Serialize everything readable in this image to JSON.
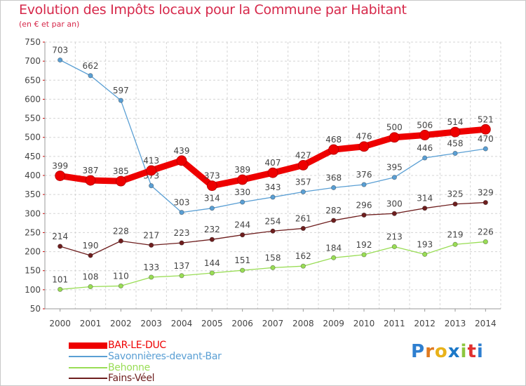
{
  "header": {
    "title": "Evolution des Impôts locaux pour la Commune par Habitant",
    "subtitle": "(en € et par an)"
  },
  "brand": {
    "letters": [
      "P",
      "r",
      "o",
      "x",
      "i",
      "t",
      "i"
    ],
    "colors": [
      "#2e7fd0",
      "#e07a1f",
      "#e8b21a",
      "#1c78c8",
      "#8ec63f",
      "#e0302f",
      "#2e7fd0"
    ]
  },
  "colors": {
    "bar_le_duc": "#ee0000",
    "savonnieres": "#5a9fd4",
    "behonne": "#99dd55",
    "fains_veel": "#6e1e1e",
    "title": "#d6284a",
    "grid": "#d4d4d4"
  },
  "chart_data": {
    "type": "line",
    "title": "Evolution des Impôts locaux pour la Commune par Habitant",
    "subtitle": "(en € et par an)",
    "x": [
      "2000",
      "2001",
      "2002",
      "2003",
      "2004",
      "2005",
      "2006",
      "2007",
      "2008",
      "2009",
      "2010",
      "2011",
      "2012",
      "2013",
      "2014"
    ],
    "yticks": [
      "50",
      "100",
      "150",
      "200",
      "250",
      "300",
      "350",
      "400",
      "450",
      "500",
      "550",
      "600",
      "650",
      "700",
      "750"
    ],
    "ylim": [
      50,
      750
    ],
    "grid": true,
    "legend_position": "bottom-left",
    "series": [
      {
        "name": "BAR-LE-DUC",
        "values": [
          399,
          387,
          385,
          413,
          439,
          373,
          389,
          407,
          427,
          468,
          476,
          500,
          506,
          514,
          521
        ]
      },
      {
        "name": "Savonnières-devant-Bar",
        "values": [
          703,
          662,
          597,
          373,
          303,
          314,
          330,
          343,
          357,
          368,
          376,
          395,
          446,
          458,
          470
        ]
      },
      {
        "name": "Behonne",
        "values": [
          101,
          108,
          110,
          133,
          137,
          144,
          151,
          158,
          162,
          184,
          192,
          213,
          193,
          219,
          226
        ]
      },
      {
        "name": "Fains-Véel",
        "values": [
          214,
          190,
          228,
          217,
          223,
          232,
          244,
          254,
          261,
          282,
          296,
          300,
          314,
          325,
          329
        ]
      }
    ]
  }
}
